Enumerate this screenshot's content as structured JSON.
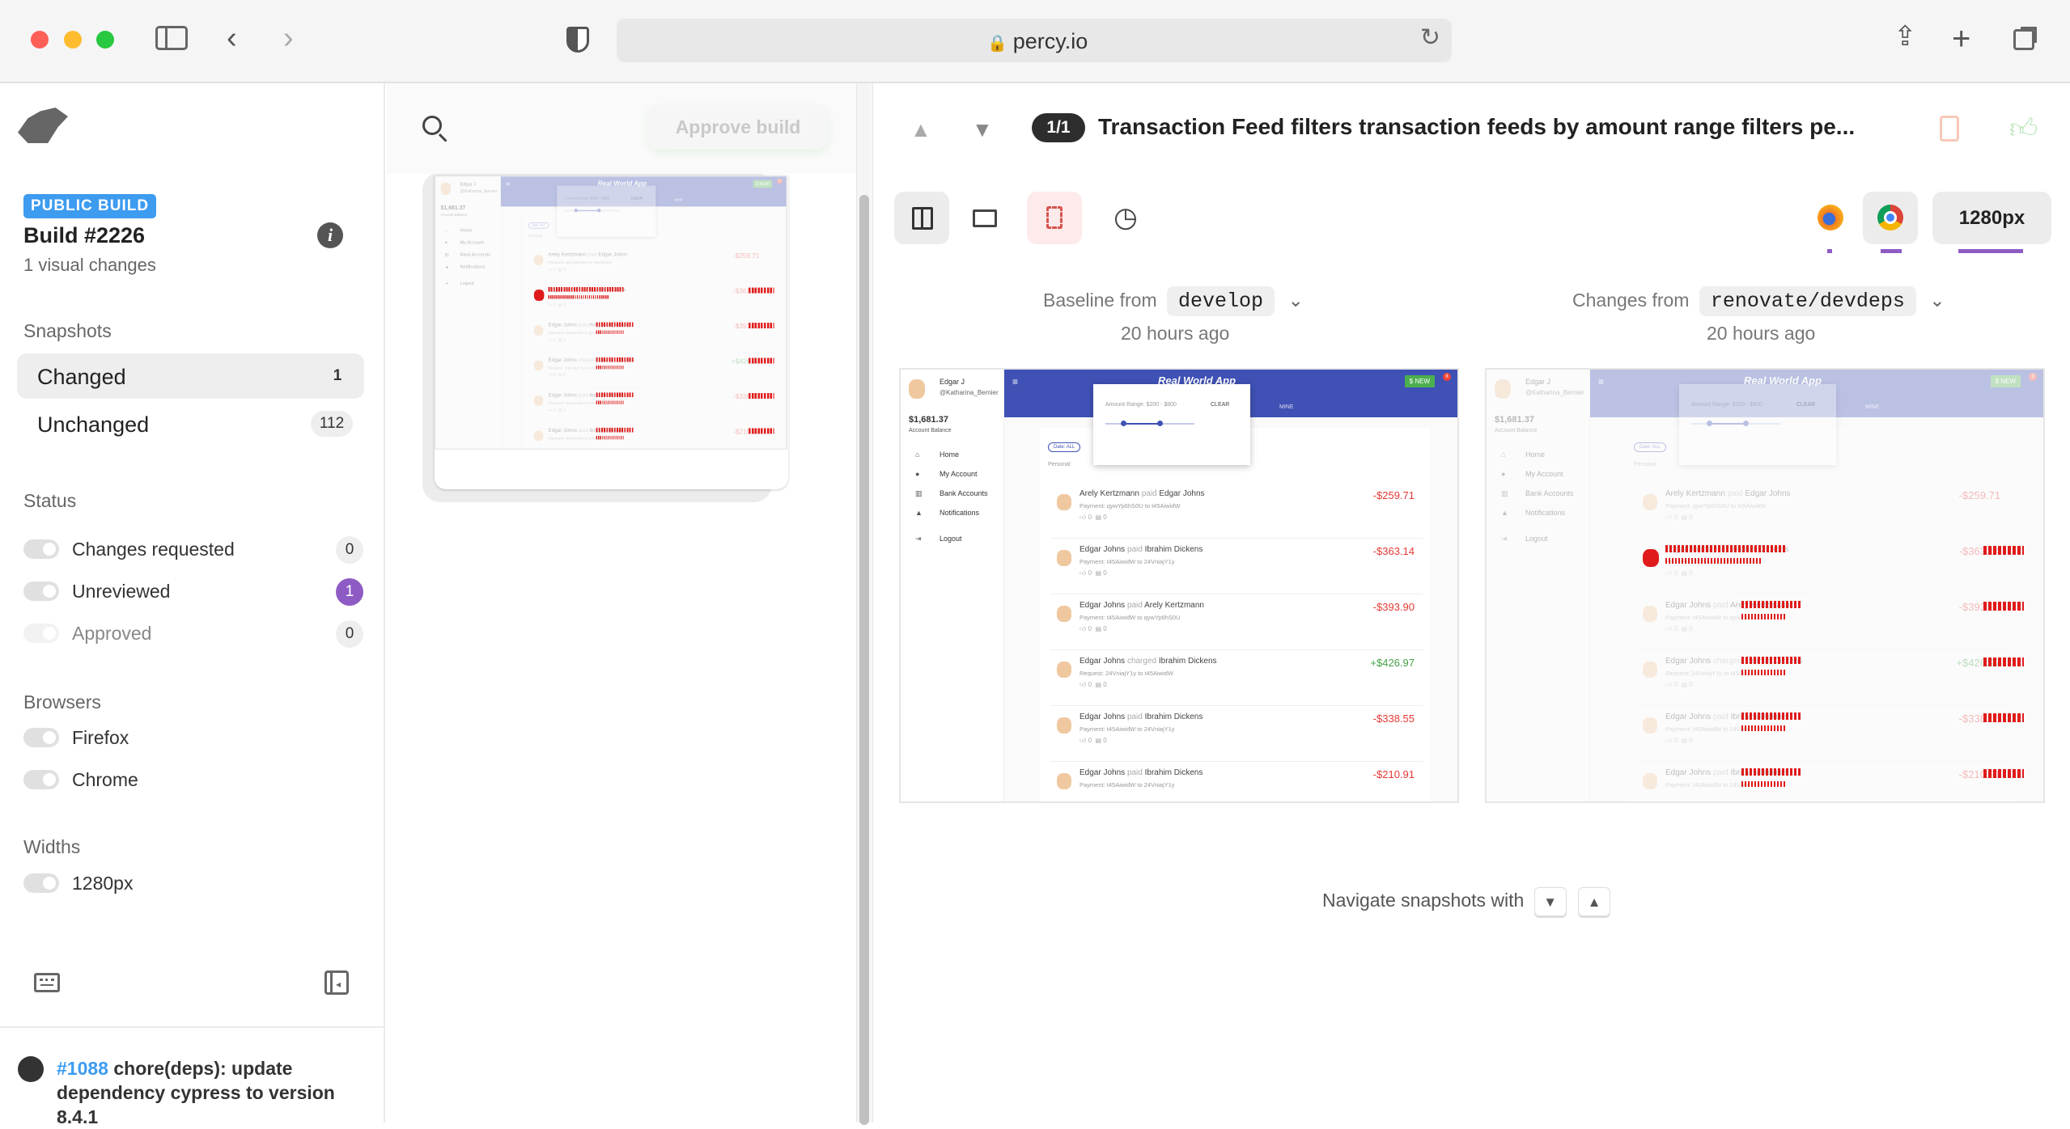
{
  "browser": {
    "url": "percy.io",
    "icons": [
      "sidebar-icon",
      "back-icon",
      "forward-icon",
      "shield-icon",
      "lock-icon",
      "reload-icon",
      "share-icon",
      "new-tab-icon",
      "tabs-icon"
    ]
  },
  "sidebar": {
    "badge": "PUBLIC BUILD",
    "build_title": "Build #2226",
    "build_subtitle": "1 visual changes",
    "snapshots_label": "Snapshots",
    "snapshots": [
      {
        "label": "Changed",
        "count": "1"
      },
      {
        "label": "Unchanged",
        "count": "112"
      }
    ],
    "status_label": "Status",
    "status": [
      {
        "label": "Changes requested",
        "count": "0"
      },
      {
        "label": "Unreviewed",
        "count": "1"
      },
      {
        "label": "Approved",
        "count": "0"
      }
    ],
    "browsers_label": "Browsers",
    "browsers": [
      {
        "label": "Firefox"
      },
      {
        "label": "Chrome"
      }
    ],
    "widths_label": "Widths",
    "widths": [
      {
        "label": "1280px"
      }
    ],
    "pr_number": "#1088",
    "pr_title": "chore(deps): update dependency cypress to version 8.4.1"
  },
  "middle": {
    "approve_label": "Approve build"
  },
  "snapshot": {
    "counter": "1/1",
    "title": "Transaction Feed filters transaction feeds by amount range filters pe...",
    "width_label": "1280px",
    "baseline_prefix": "Baseline from",
    "baseline_branch": "develop",
    "baseline_time": "20 hours ago",
    "changes_prefix": "Changes from",
    "changes_branch": "renovate/devdeps",
    "changes_time": "20 hours ago",
    "navigate_label": "Navigate snapshots with",
    "nav_down": "▼",
    "nav_up": "▲"
  },
  "app": {
    "user_name": "Edgar J",
    "user_handle": "@Katharina_Bernier",
    "balance": "$1,681.37",
    "balance_label": "Account Balance",
    "nav": [
      "Home",
      "My Account",
      "Bank Accounts",
      "Notifications",
      "Logout"
    ],
    "app_title": "Real World App",
    "new_label": "$ NEW",
    "notif_count": "8",
    "tab_mine": "MINE",
    "range_label": "Amount Range: $200 - $800",
    "clear_label": "CLEAR",
    "date_filter": "Date: ALL",
    "section": "Personal",
    "items": [
      {
        "from": "Arely Kertzmann",
        "verb": "paid",
        "to": "Edgar Johns",
        "detail": "Payment: qywYp6hS0U to t45AiwidW",
        "amount": "-$259.71",
        "likes": "0",
        "comments": "0"
      },
      {
        "from": "Edgar Johns",
        "verb": "paid",
        "to": "Ibrahim Dickens",
        "detail": "Payment: t45AiwidW to 24VniajY1y",
        "amount": "-$363.14",
        "likes": "0",
        "comments": "0"
      },
      {
        "from": "Edgar Johns",
        "verb": "paid",
        "to": "Arely Kertzmann",
        "detail": "Payment: t45AiwidW to qywYp6hS0U",
        "amount": "-$393.90",
        "likes": "0",
        "comments": "0"
      },
      {
        "from": "Edgar Johns",
        "verb": "charged",
        "to": "Ibrahim Dickens",
        "detail": "Request: 24VniajY1y to t45AiwidW",
        "amount": "+$426.97",
        "likes": "0",
        "comments": "0"
      },
      {
        "from": "Edgar Johns",
        "verb": "paid",
        "to": "Ibrahim Dickens",
        "detail": "Payment: t45AiwidW to 24VniajY1y",
        "amount": "-$338.55",
        "likes": "0",
        "comments": "0"
      },
      {
        "from": "Edgar Johns",
        "verb": "paid",
        "to": "Ibrahim Dickens",
        "detail": "Payment: t45AiwidW to 24VniajY1y",
        "amount": "-$210.91",
        "likes": "0",
        "comments": "0"
      }
    ]
  },
  "colors": {
    "accent_blue": "#3d9bf0",
    "unreviewed_purple": "#8e5bc4",
    "app_header": "#3f51b5",
    "negative": "#e53935",
    "positive": "#43a047",
    "diff_red": "#e01b1b"
  }
}
